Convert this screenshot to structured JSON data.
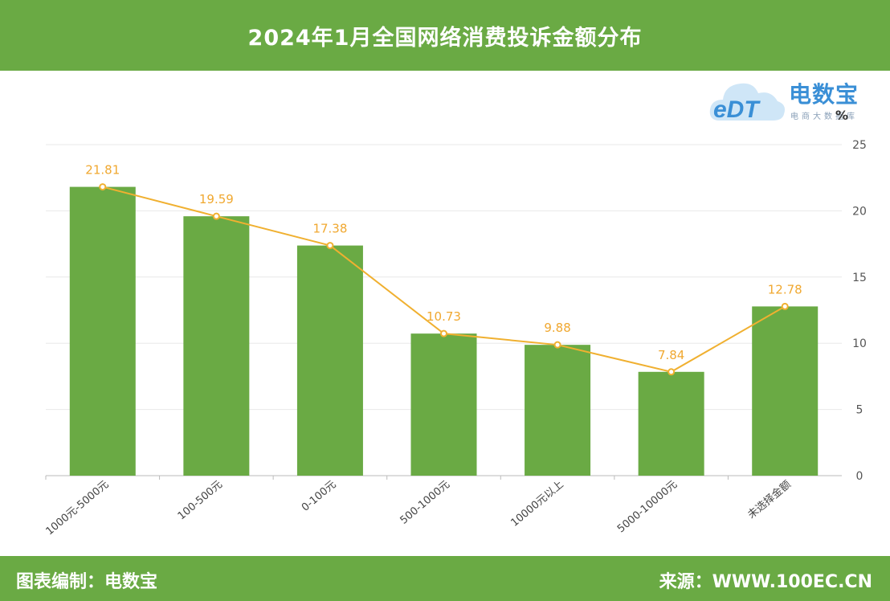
{
  "header": {
    "title": "2024年1月全国网络消费投诉金额分布"
  },
  "logo": {
    "name": "电数宝",
    "sub": "电商大数据库",
    "mark": "eDT"
  },
  "footer": {
    "left": "图表编制：电数宝",
    "right": "来源：WWW.100EC.CN"
  },
  "chart_data": {
    "type": "bar",
    "unit": "%",
    "categories": [
      "1000元-5000元",
      "100-500元",
      "0-100元",
      "500-1000元",
      "10000元以上",
      "5000-10000元",
      "未选择金额"
    ],
    "series": [
      {
        "type": "bar",
        "values": [
          21.81,
          19.59,
          17.38,
          10.73,
          9.88,
          7.84,
          12.78
        ]
      },
      {
        "type": "line",
        "values": [
          21.81,
          19.59,
          17.38,
          10.73,
          9.88,
          7.84,
          12.78
        ]
      }
    ],
    "ylim": [
      0,
      25
    ],
    "yticks": [
      "25",
      "20",
      "15",
      "10",
      "5",
      "0"
    ],
    "y_axis_side": "right",
    "grid": true,
    "colors": {
      "bar": "#6aaa44",
      "line": "#f0b030",
      "header": "#6aaa44"
    }
  }
}
